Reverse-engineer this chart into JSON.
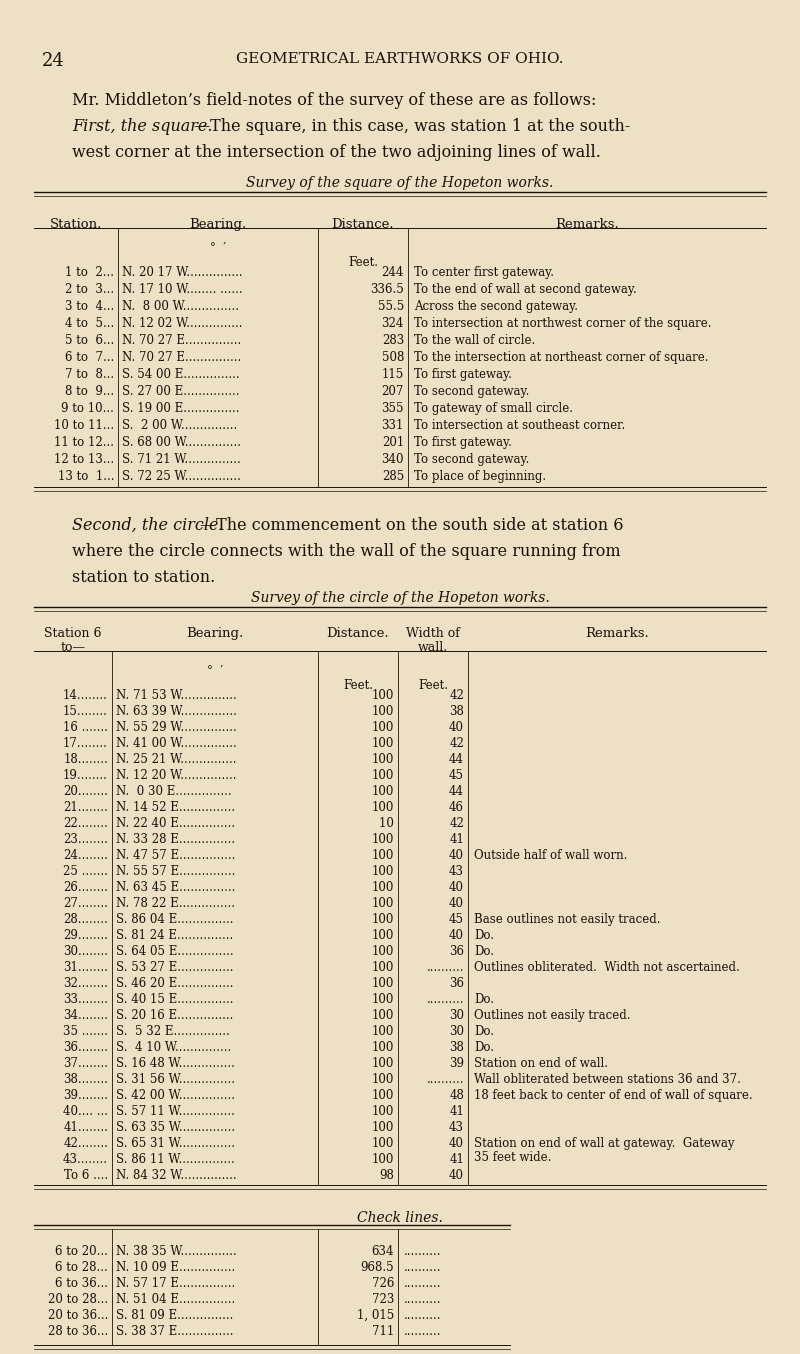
{
  "bg_color": "#ede0c4",
  "text_color": "#1a1008",
  "page_number": "24",
  "page_header": "GEOMETRICAL EARTHWORKS OF OHIO.",
  "table1_title": "Survey of the square of the Hopeton works.",
  "table1_rows": [
    [
      "1 to  2...",
      "N. 20 17 W...............",
      "244",
      "To center first gateway."
    ],
    [
      "2 to  3...",
      "N. 17 10 W........ ......",
      "336.5",
      "To the end of wall at second gateway."
    ],
    [
      "3 to  4...",
      "N.  8 00 W...............",
      "55.5",
      "Across the second gateway."
    ],
    [
      "4 to  5...",
      "N. 12 02 W...............",
      "324",
      "To intersection at northwest corner of the square."
    ],
    [
      "5 to  6...",
      "N. 70 27 E...............",
      "283",
      "To the wall of circle."
    ],
    [
      "6 to  7...",
      "N. 70 27 E...............",
      "508",
      "To the intersection at northeast corner of square."
    ],
    [
      "7 to  8...",
      "S. 54 00 E...............",
      "115",
      "To first gateway."
    ],
    [
      "8 to  9...",
      "S. 27 00 E...............",
      "207",
      "To second gateway."
    ],
    [
      "9 to 10...",
      "S. 19 00 E...............",
      "355",
      "To gateway of small circle."
    ],
    [
      "10 to 11...",
      "S.  2 00 W...............",
      "331",
      "To intersection at southeast corner."
    ],
    [
      "11 to 12...",
      "S. 68 00 W...............",
      "201",
      "To first gateway."
    ],
    [
      "12 to 13...",
      "S. 71 21 W...............",
      "340",
      "To second gateway."
    ],
    [
      "13 to  1...",
      "S. 72 25 W...............",
      "285",
      "To place of beginning."
    ]
  ],
  "table2_title": "Survey of the circle of the Hopeton works.",
  "table2_rows": [
    [
      "14........",
      "N. 71 53 W...............",
      "100",
      "42",
      ""
    ],
    [
      "15........",
      "N. 63 39 W...............",
      "100",
      "38",
      ""
    ],
    [
      "16 .......",
      "N. 55 29 W...............",
      "100",
      "40",
      ""
    ],
    [
      "17........",
      "N. 41 00 W...............",
      "100",
      "42",
      ""
    ],
    [
      "18........",
      "N. 25 21 W...............",
      "100",
      "44",
      ""
    ],
    [
      "19........",
      "N. 12 20 W...............",
      "100",
      "45",
      ""
    ],
    [
      "20........",
      "N.  0 30 E...............",
      "100",
      "44",
      ""
    ],
    [
      "21........",
      "N. 14 52 E...............",
      "100",
      "46",
      ""
    ],
    [
      "22........",
      "N. 22 40 E...............",
      "10⁠",
      "42",
      ""
    ],
    [
      "23........",
      "N. 33 28 E...............",
      "100",
      "41",
      ""
    ],
    [
      "24........",
      "N. 47 57 E...............",
      "100",
      "40",
      "Outside half of wall worn."
    ],
    [
      "25 .......",
      "N. 55 57 E...............",
      "100",
      "43",
      ""
    ],
    [
      "26........",
      "N. 63 45 E...............",
      "100",
      "40",
      ""
    ],
    [
      "27........",
      "N. 78 22 E...............",
      "100",
      "40",
      ""
    ],
    [
      "28........",
      "S. 86 04 E...............",
      "100",
      "45",
      "Base outlines not easily traced."
    ],
    [
      "29........",
      "S. 81 24 E...............",
      "100",
      "40",
      "Do."
    ],
    [
      "30........",
      "S. 64 05 E...............",
      "100",
      "36",
      "Do."
    ],
    [
      "31........",
      "S. 53 27 E...............",
      "100",
      "..........",
      "Outlines obliterated.  Width not ascertained."
    ],
    [
      "32........",
      "S. 46 20 E...............",
      "100",
      "36",
      ""
    ],
    [
      "33........",
      "S. 40 15 E...............",
      "100",
      "..........",
      "Do."
    ],
    [
      "34........",
      "S. 20 16 E...............",
      "100",
      "30",
      "Outlines not easily traced."
    ],
    [
      "35 .......",
      "S.  5 32 E...............",
      "100",
      "30",
      "Do."
    ],
    [
      "36........",
      "S.  4 10 W...............",
      "100",
      "38",
      "Do."
    ],
    [
      "37........",
      "S. 16 48 W...............",
      "100",
      "39",
      "Station on end of wall."
    ],
    [
      "38........",
      "S. 31 56 W...............",
      "100",
      "..........",
      "Wall obliterated between stations 36 and 37."
    ],
    [
      "39........",
      "S. 42 00 W...............",
      "100",
      "48",
      "18 feet back to center of end of wall of square."
    ],
    [
      "40.... ...",
      "S. 57 11 W...............",
      "100",
      "41",
      ""
    ],
    [
      "41........",
      "S. 63 35 W...............",
      "100",
      "43",
      ""
    ],
    [
      "42........",
      "S. 65 31 W...............",
      "100",
      "40",
      "Station on end of wall at gateway.  Gateway\n35 feet wide."
    ],
    [
      "43........",
      "S. 86 11 W...............",
      "100",
      "41",
      ""
    ],
    [
      "To 6 ....",
      "N. 84 32 W...............",
      "98",
      "40",
      ""
    ]
  ],
  "table3_title": "Check lines.",
  "table3_rows": [
    [
      "6 to 20...",
      "N. 38 35 W...............",
      "634",
      ".........."
    ],
    [
      "6 to 28...",
      "N. 10 09 E...............",
      "968.5",
      ".........."
    ],
    [
      "6 to 36...",
      "N. 57 17 E...............",
      "726",
      ".........."
    ],
    [
      "20 to 28...",
      "N. 51 04 E...............",
      "723",
      ".........."
    ],
    [
      "20 to 36...",
      "S. 81 09 E...............",
      "1, 015",
      ".........."
    ],
    [
      "28 to 36...",
      "S. 38 37 E...............",
      "711",
      ".........."
    ]
  ]
}
